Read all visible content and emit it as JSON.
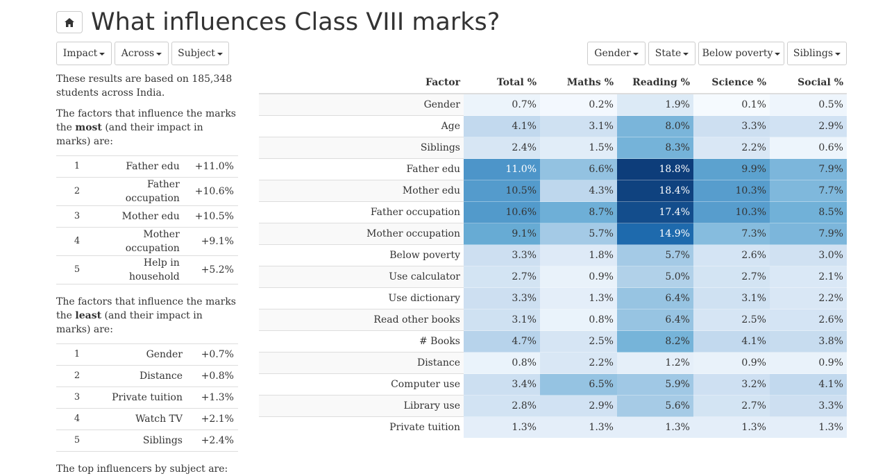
{
  "header": {
    "title": "What influences Class VIII marks?",
    "home_icon": "home-icon"
  },
  "toolbar": {
    "left": [
      "Impact",
      "Across",
      "Subject"
    ],
    "right": [
      "Gender",
      "State",
      "Below poverty",
      "Siblings"
    ]
  },
  "summary": {
    "intro": "These results are based on 185,348 students across India.",
    "most_pre": "The factors that influence the marks the ",
    "most_bold": "most",
    "most_post": " (and their impact in marks) are:",
    "most": [
      {
        "rank": "1",
        "name": "Father edu",
        "value": "+11.0%"
      },
      {
        "rank": "2",
        "name": "Father occupation",
        "value": "+10.6%"
      },
      {
        "rank": "3",
        "name": "Mother edu",
        "value": "+10.5%"
      },
      {
        "rank": "4",
        "name": "Mother occupation",
        "value": "+9.1%"
      },
      {
        "rank": "5",
        "name": "Help in household",
        "value": "+5.2%"
      }
    ],
    "least_pre": "The factors that influence the marks the ",
    "least_bold": "least",
    "least_post": " (and their impact in marks) are:",
    "least": [
      {
        "rank": "1",
        "name": "Gender",
        "value": "+0.7%"
      },
      {
        "rank": "2",
        "name": "Distance",
        "value": "+0.8%"
      },
      {
        "rank": "3",
        "name": "Private tuition",
        "value": "+1.3%"
      },
      {
        "rank": "4",
        "name": "Watch TV",
        "value": "+2.1%"
      },
      {
        "rank": "5",
        "name": "Siblings",
        "value": "+2.4%"
      }
    ],
    "footer": "The top influencers by subject are:"
  },
  "table": {
    "columns": [
      "Factor",
      "Total %",
      "Maths %",
      "Reading %",
      "Science %",
      "Social %"
    ],
    "color_low": "#f7fbff",
    "color_high": "#08306b",
    "rows": [
      {
        "factor": "Gender",
        "values": [
          "0.7%",
          "0.2%",
          "1.9%",
          "0.1%",
          "0.5%"
        ]
      },
      {
        "factor": "Age",
        "values": [
          "4.1%",
          "3.1%",
          "8.0%",
          "3.3%",
          "2.9%"
        ]
      },
      {
        "factor": "Siblings",
        "values": [
          "2.4%",
          "1.5%",
          "8.3%",
          "2.2%",
          "0.6%"
        ]
      },
      {
        "factor": "Father edu",
        "values": [
          "11.0%",
          "6.6%",
          "18.8%",
          "9.9%",
          "7.9%"
        ]
      },
      {
        "factor": "Mother edu",
        "values": [
          "10.5%",
          "4.3%",
          "18.4%",
          "10.3%",
          "7.7%"
        ]
      },
      {
        "factor": "Father occupation",
        "values": [
          "10.6%",
          "8.7%",
          "17.4%",
          "10.3%",
          "8.5%"
        ]
      },
      {
        "factor": "Mother occupation",
        "values": [
          "9.1%",
          "5.7%",
          "14.9%",
          "7.3%",
          "7.9%"
        ]
      },
      {
        "factor": "Below poverty",
        "values": [
          "3.3%",
          "1.8%",
          "5.7%",
          "2.6%",
          "3.0%"
        ]
      },
      {
        "factor": "Use calculator",
        "values": [
          "2.7%",
          "0.9%",
          "5.0%",
          "2.7%",
          "2.1%"
        ]
      },
      {
        "factor": "Use dictionary",
        "values": [
          "3.3%",
          "1.3%",
          "6.4%",
          "3.1%",
          "2.2%"
        ]
      },
      {
        "factor": "Read other books",
        "values": [
          "3.1%",
          "0.8%",
          "6.4%",
          "2.5%",
          "2.6%"
        ]
      },
      {
        "factor": "# Books",
        "values": [
          "4.7%",
          "2.5%",
          "8.2%",
          "4.1%",
          "3.8%"
        ]
      },
      {
        "factor": "Distance",
        "values": [
          "0.8%",
          "2.2%",
          "1.2%",
          "0.9%",
          "0.9%"
        ]
      },
      {
        "factor": "Computer use",
        "values": [
          "3.4%",
          "6.5%",
          "5.9%",
          "3.2%",
          "4.1%"
        ]
      },
      {
        "factor": "Library use",
        "values": [
          "2.8%",
          "2.9%",
          "5.6%",
          "2.7%",
          "3.3%"
        ]
      },
      {
        "factor": "Private tuition",
        "values": [
          "1.3%",
          "1.3%",
          "1.3%",
          "1.3%",
          "1.3%"
        ]
      }
    ]
  }
}
